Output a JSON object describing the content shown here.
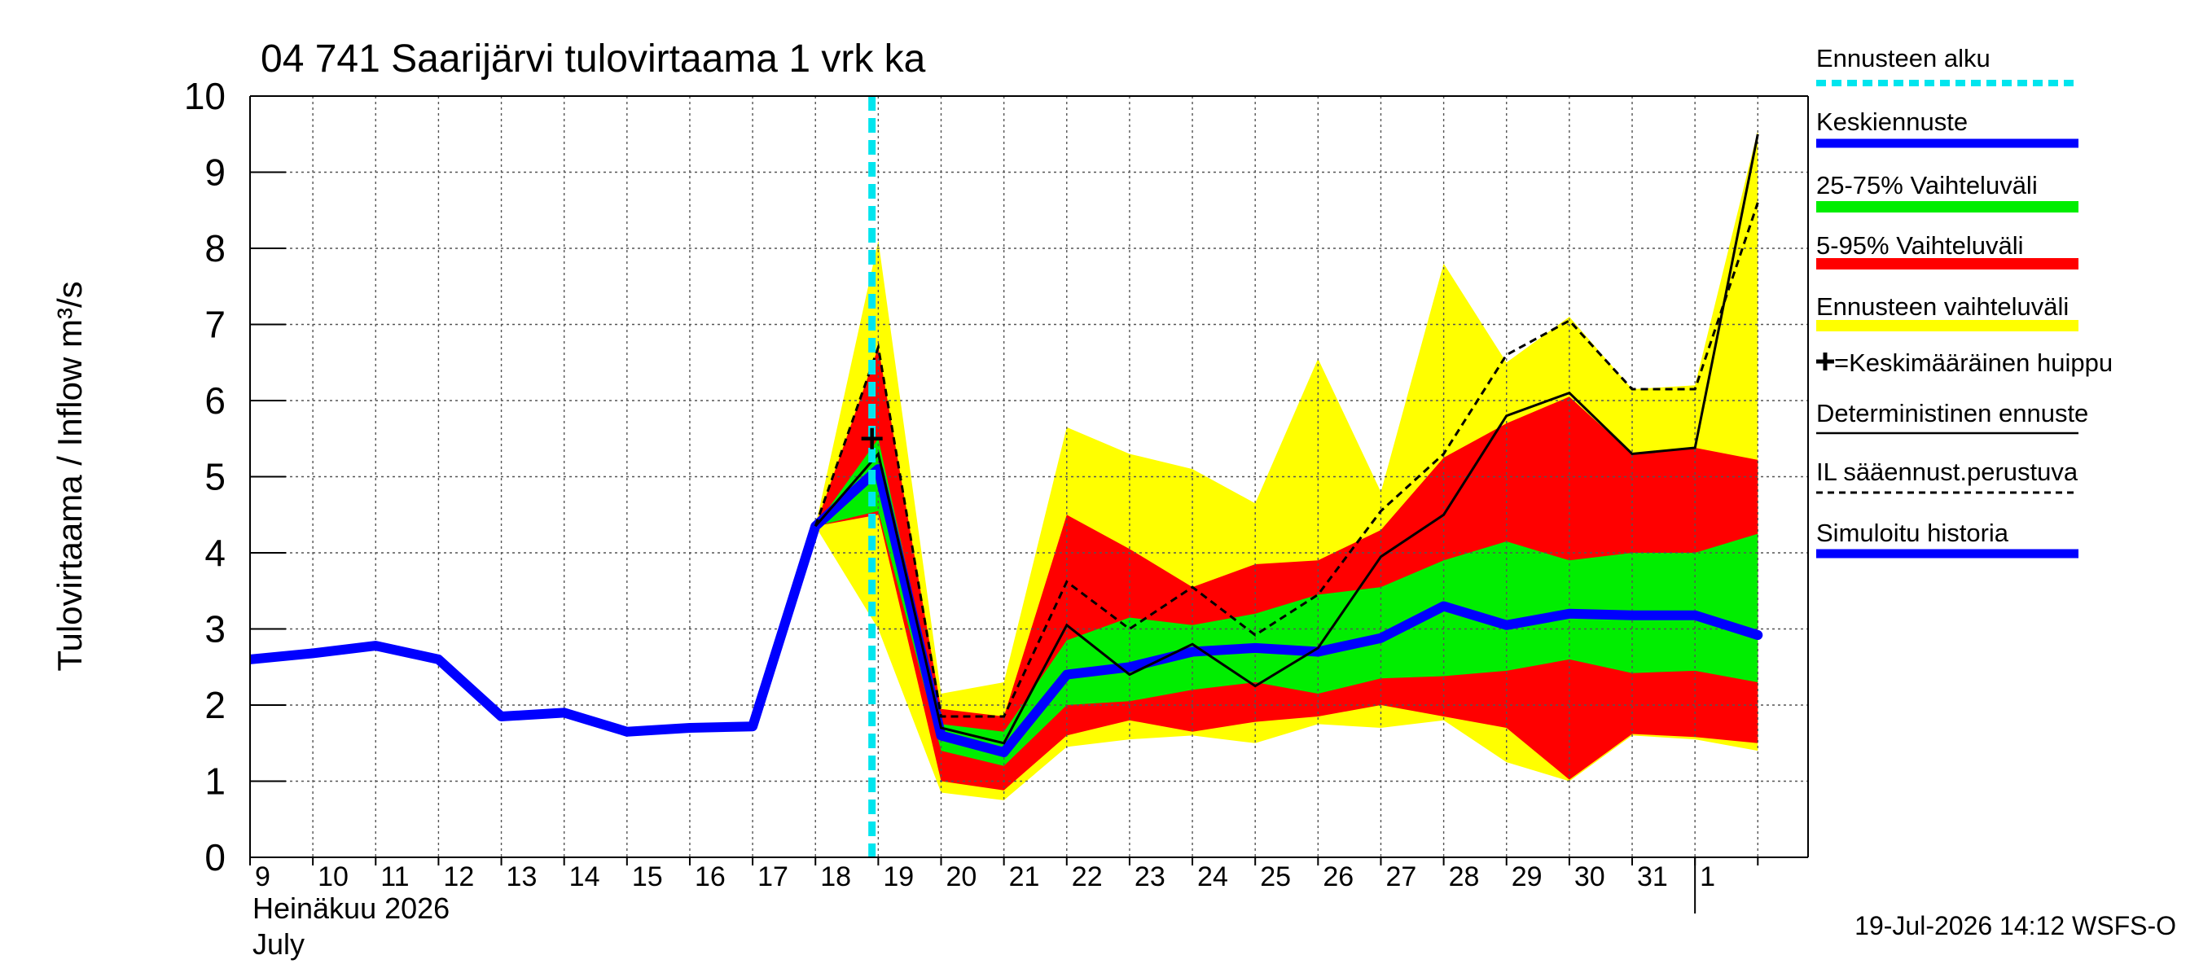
{
  "chart_data": {
    "type": "area",
    "title": "04 741 Saarijärvi tulovirtaama 1 vrk ka",
    "ylabel": "Tulovirtaama / Inflow    m³/s",
    "ylim": [
      0,
      10
    ],
    "y_ticks": [
      "0",
      "1",
      "2",
      "3",
      "4",
      "5",
      "6",
      "7",
      "8",
      "9",
      "10"
    ],
    "x_tick_labels": [
      "9",
      "10",
      "11",
      "12",
      "13",
      "14",
      "15",
      "16",
      "17",
      "18",
      "19",
      "20",
      "21",
      "22",
      "23",
      "24",
      "25",
      "26",
      "27",
      "28",
      "29",
      "30",
      "31",
      "1"
    ],
    "month_label_fi": "Heinäkuu  2026",
    "month_label_en": "July",
    "forecast_start_day": 18.9,
    "footer": "19-Jul-2026 14:12 WSFS-O",
    "grid": true,
    "legend_position": "right",
    "legend": [
      {
        "key": "forecast_start",
        "label": "Ennusteen alku",
        "color": "#00e5ee",
        "style": "dashed"
      },
      {
        "key": "mean",
        "label": "Keskiennuste",
        "color": "#0000ff",
        "style": "solid"
      },
      {
        "key": "band_25_75",
        "label": "25-75% Vaihteluväli",
        "color": "#00ee00",
        "style": "band"
      },
      {
        "key": "band_5_95",
        "label": "5-95% Vaihteluväli",
        "color": "#ff0000",
        "style": "band"
      },
      {
        "key": "band_range",
        "label": "Ennusteen vaihteluväli",
        "color": "#ffff00",
        "style": "band"
      },
      {
        "key": "peak",
        "label": "=Keskimääräinen huippu",
        "color": "#000000",
        "style": "plus"
      },
      {
        "key": "deterministic",
        "label": "Deterministinen ennuste",
        "color": "#000000",
        "style": "thin"
      },
      {
        "key": "il_forecast",
        "label": "IL sääennust.perustuva",
        "color": "#000000",
        "style": "dotted"
      },
      {
        "key": "history",
        "label": "Simuloitu historia",
        "color": "#0000ff",
        "style": "thick"
      }
    ],
    "series": {
      "history": {
        "x": [
          9,
          10,
          11,
          12,
          13,
          14,
          15,
          16,
          17,
          18,
          19,
          20,
          21,
          22,
          23,
          24,
          25,
          26,
          27,
          28,
          29,
          30,
          31,
          32,
          33
        ],
        "values": [
          2.6,
          2.68,
          2.78,
          2.6,
          1.85,
          1.9,
          1.65,
          1.7,
          1.72,
          4.35,
          5.1,
          1.6,
          1.38,
          2.4,
          2.5,
          2.7,
          2.75,
          2.7,
          2.88,
          3.3,
          3.05,
          3.2,
          3.18,
          3.18,
          2.92
        ]
      },
      "forecast_x": [
        18,
        19,
        20,
        21,
        22,
        23,
        24,
        25,
        26,
        27,
        28,
        29,
        30,
        31,
        32,
        33
      ],
      "range_low": [
        4.35,
        3.0,
        0.85,
        0.75,
        1.45,
        1.55,
        1.6,
        1.5,
        1.75,
        1.7,
        1.8,
        1.25,
        1.0,
        1.6,
        1.55,
        1.4
      ],
      "range_high": [
        4.35,
        8.1,
        2.15,
        2.3,
        5.65,
        5.3,
        5.1,
        4.65,
        6.55,
        4.8,
        7.8,
        6.5,
        7.1,
        6.15,
        6.2,
        9.55
      ],
      "p5": [
        4.35,
        4.5,
        1.0,
        0.88,
        1.6,
        1.8,
        1.65,
        1.78,
        1.85,
        2.0,
        1.85,
        1.7,
        1.02,
        1.62,
        1.58,
        1.5
      ],
      "p95": [
        4.35,
        6.7,
        1.95,
        1.85,
        4.5,
        4.05,
        3.55,
        3.85,
        3.9,
        4.3,
        5.25,
        5.7,
        6.05,
        5.3,
        5.38,
        5.22
      ],
      "p25": [
        4.35,
        4.55,
        1.4,
        1.2,
        2.0,
        2.05,
        2.2,
        2.3,
        2.15,
        2.35,
        2.38,
        2.45,
        2.6,
        2.42,
        2.45,
        2.3
      ],
      "p75": [
        4.35,
        5.5,
        1.75,
        1.65,
        2.85,
        3.15,
        3.05,
        3.2,
        3.45,
        3.55,
        3.9,
        4.15,
        3.9,
        4.0,
        4.0,
        4.25
      ],
      "deterministic": [
        4.35,
        5.3,
        1.7,
        1.5,
        3.05,
        2.4,
        2.8,
        2.25,
        2.75,
        3.95,
        4.5,
        5.8,
        6.1,
        5.3,
        5.38,
        9.5
      ],
      "il_forecast": [
        4.35,
        6.7,
        1.85,
        1.85,
        3.62,
        3.0,
        3.55,
        2.92,
        3.45,
        4.55,
        5.3,
        6.6,
        7.05,
        6.15,
        6.15,
        8.6
      ],
      "peak": {
        "x": 18.9,
        "y": 5.5
      }
    }
  }
}
